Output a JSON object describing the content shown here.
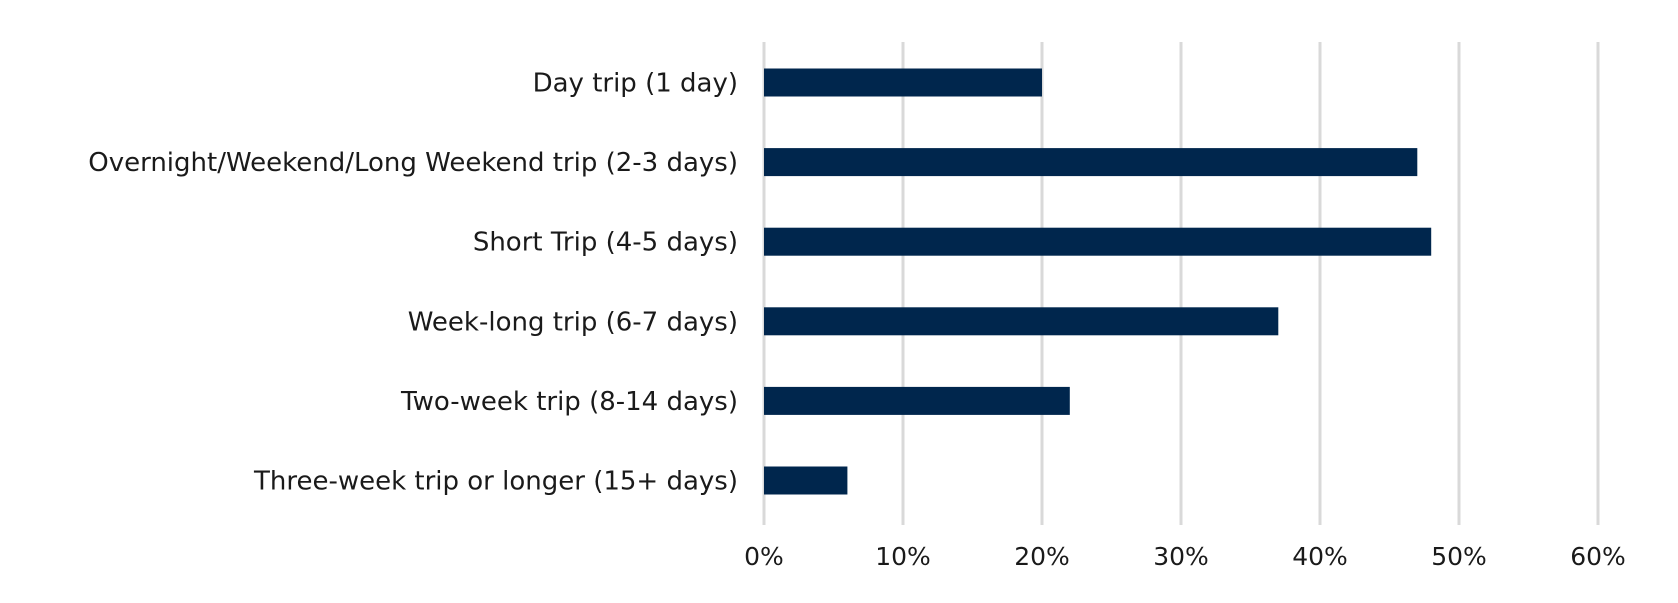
{
  "chart_data": {
    "type": "bar",
    "orientation": "horizontal",
    "categories": [
      "Day trip (1 day)",
      "Overnight/Weekend/Long Weekend trip (2-3 days)",
      "Short Trip (4-5 days)",
      "Week-long trip (6-7 days)",
      "Two-week trip (8-14 days)",
      "Three-week trip or longer (15+ days)"
    ],
    "values": [
      20,
      47,
      48,
      37,
      22,
      6
    ],
    "xlim": [
      0,
      60
    ],
    "xticks": [
      0,
      10,
      20,
      30,
      40,
      50,
      60
    ],
    "xtick_labels": [
      "0%",
      "10%",
      "20%",
      "30%",
      "40%",
      "50%",
      "60%"
    ],
    "title": "",
    "xlabel": "",
    "ylabel": "",
    "grid": "vertical",
    "legend": "none",
    "bar_color": "#00264d",
    "grid_color": "#d9d9d9"
  }
}
